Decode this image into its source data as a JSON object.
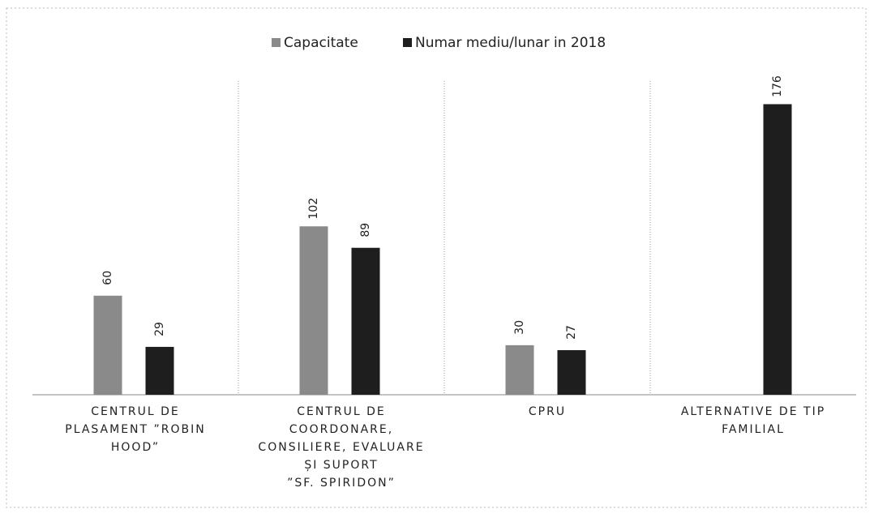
{
  "chart_data": {
    "type": "bar",
    "categories": [
      "CENTRUL DE\nPLASAMENT ”ROBIN\nHOOD”",
      "CENTRUL DE\nCOORDONARE,\nCONSILIERE, EVALUARE\nȘI SUPORT\n”SF. SPIRIDON”",
      "CPRU",
      "ALTERNATIVE DE TIP\nFAMILIAL"
    ],
    "series": [
      {
        "name": "Capacitate",
        "color": "#8a8a8a",
        "values": [
          60,
          102,
          30,
          null
        ]
      },
      {
        "name": "Numar mediu/lunar in 2018",
        "color": "#1e1e1e",
        "values": [
          29,
          89,
          27,
          176
        ]
      }
    ],
    "ylim": [
      0,
      190
    ]
  }
}
